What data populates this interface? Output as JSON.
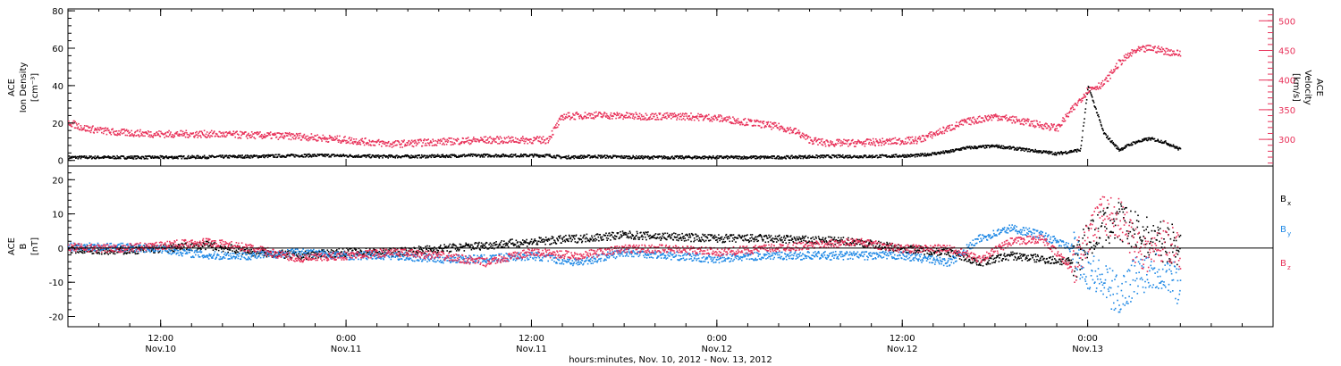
{
  "chart_data": {
    "type": "scatter",
    "x_axis": {
      "title": "hours:minutes, Nov. 10, 2012 - Nov. 13, 2012",
      "range_hours": [
        6,
        84
      ],
      "ticks": [
        {
          "h": 12,
          "time": "12:00",
          "day": "Nov.10"
        },
        {
          "h": 24,
          "time": "0:00",
          "day": "Nov.11"
        },
        {
          "h": 36,
          "time": "12:00",
          "day": "Nov.11"
        },
        {
          "h": 48,
          "time": "0:00",
          "day": "Nov.12"
        },
        {
          "h": 60,
          "time": "12:00",
          "day": "Nov.12"
        },
        {
          "h": 72,
          "time": "0:00",
          "day": "Nov.13"
        }
      ]
    },
    "panels": [
      {
        "id": "plasma",
        "left_axis": {
          "label_lines": [
            "ACE",
            "Ion Density",
            "[cm⁻³]"
          ],
          "ylim": [
            -3,
            81
          ],
          "ticks": [
            0,
            20,
            40,
            60,
            80
          ]
        },
        "right_axis": {
          "label_lines": [
            "ACE",
            "Velocity",
            "[km/s]"
          ],
          "ylim": [
            255,
            520
          ],
          "ticks": [
            300,
            350,
            400,
            450,
            500
          ],
          "color": "#e8325a"
        },
        "series": [
          {
            "axis": "left",
            "color": "#000000",
            "points": [
              [
                6,
                2
              ],
              [
                9,
                2
              ],
              [
                12,
                2
              ],
              [
                15,
                2.2
              ],
              [
                18,
                2.5
              ],
              [
                21,
                3
              ],
              [
                23,
                3
              ],
              [
                26,
                2.5
              ],
              [
                29,
                2.5
              ],
              [
                32,
                3
              ],
              [
                35,
                3
              ],
              [
                37,
                3
              ],
              [
                38,
                2
              ],
              [
                40,
                2.5
              ],
              [
                43,
                2
              ],
              [
                46,
                2
              ],
              [
                49,
                2
              ],
              [
                52,
                2
              ],
              [
                55,
                2.5
              ],
              [
                58,
                2.5
              ],
              [
                61,
                3
              ],
              [
                63,
                5
              ],
              [
                64,
                7
              ],
              [
                66,
                8
              ],
              [
                68,
                6
              ],
              [
                70,
                4
              ],
              [
                71.5,
                6
              ],
              [
                72,
                40
              ],
              [
                73,
                15
              ],
              [
                74,
                6
              ],
              [
                75,
                10
              ],
              [
                76,
                12
              ],
              [
                77,
                10
              ],
              [
                78,
                6
              ]
            ]
          },
          {
            "axis": "right",
            "color": "#e8325a",
            "points": [
              [
                6,
                330
              ],
              [
                7,
                320
              ],
              [
                9,
                313
              ],
              [
                12,
                310
              ],
              [
                15,
                310
              ],
              [
                18,
                308
              ],
              [
                21,
                306
              ],
              [
                24,
                300
              ],
              [
                27,
                293
              ],
              [
                30,
                297
              ],
              [
                33,
                300
              ],
              [
                35,
                300
              ],
              [
                37,
                300
              ],
              [
                38,
                340
              ],
              [
                40,
                342
              ],
              [
                43,
                340
              ],
              [
                46,
                340
              ],
              [
                48,
                337
              ],
              [
                50,
                330
              ],
              [
                52,
                322
              ],
              [
                53,
                315
              ],
              [
                54,
                300
              ],
              [
                55,
                295
              ],
              [
                57,
                295
              ],
              [
                59,
                297
              ],
              [
                61,
                300
              ],
              [
                63,
                320
              ],
              [
                64,
                330
              ],
              [
                66,
                340
              ],
              [
                68,
                330
              ],
              [
                70,
                320
              ],
              [
                72,
                385
              ],
              [
                73,
                395
              ],
              [
                74,
                430
              ],
              [
                75,
                450
              ],
              [
                76,
                455
              ],
              [
                77,
                450
              ],
              [
                78,
                445
              ]
            ]
          }
        ]
      },
      {
        "id": "magnetic",
        "left_axis": {
          "label_lines": [
            "ACE",
            "B",
            "[nT]"
          ],
          "ylim": [
            -23,
            24
          ],
          "ticks": [
            -20,
            -10,
            0,
            10,
            20
          ]
        },
        "legend": [
          {
            "label": "B",
            "sub": "x",
            "color": "#000000"
          },
          {
            "label": "B",
            "sub": "y",
            "color": "#1e88e5"
          },
          {
            "label": "B",
            "sub": "z",
            "color": "#e8325a"
          }
        ],
        "series": [
          {
            "name": "Bx",
            "color": "#000000",
            "points": [
              [
                6,
                0
              ],
              [
                9,
                -0.5
              ],
              [
                12,
                0
              ],
              [
                15,
                1
              ],
              [
                18,
                -1
              ],
              [
                21,
                -2
              ],
              [
                24,
                -1
              ],
              [
                27,
                -1
              ],
              [
                30,
                0
              ],
              [
                33,
                1
              ],
              [
                36,
                2
              ],
              [
                39,
                3
              ],
              [
                42,
                4
              ],
              [
                45,
                3.5
              ],
              [
                48,
                3
              ],
              [
                51,
                3
              ],
              [
                54,
                2.5
              ],
              [
                57,
                2
              ],
              [
                60,
                0
              ],
              [
                63,
                -1
              ],
              [
                65,
                -4
              ],
              [
                67,
                -2
              ],
              [
                69,
                -3
              ],
              [
                71,
                -4
              ],
              [
                72,
                3
              ],
              [
                73,
                6
              ],
              [
                74,
                8
              ],
              [
                75,
                5
              ],
              [
                76,
                3
              ],
              [
                77,
                2
              ],
              [
                78,
                1
              ]
            ]
          },
          {
            "name": "By",
            "color": "#1e88e5",
            "points": [
              [
                6,
                0.5
              ],
              [
                9,
                0.5
              ],
              [
                12,
                0
              ],
              [
                15,
                -2
              ],
              [
                18,
                -2
              ],
              [
                21,
                -1
              ],
              [
                24,
                -2
              ],
              [
                27,
                -2
              ],
              [
                30,
                -3
              ],
              [
                33,
                -3
              ],
              [
                36,
                -2
              ],
              [
                39,
                -4
              ],
              [
                42,
                -1
              ],
              [
                45,
                -2
              ],
              [
                48,
                -3
              ],
              [
                51,
                -2
              ],
              [
                54,
                -2
              ],
              [
                57,
                -2
              ],
              [
                60,
                -2
              ],
              [
                63,
                -4
              ],
              [
                65,
                3
              ],
              [
                67,
                6
              ],
              [
                69,
                4
              ],
              [
                71,
                0
              ],
              [
                72,
                -6
              ],
              [
                73,
                -10
              ],
              [
                74,
                -14
              ],
              [
                75,
                -8
              ],
              [
                76,
                -6
              ],
              [
                77,
                -7
              ],
              [
                78,
                -11
              ]
            ]
          },
          {
            "name": "Bz",
            "color": "#e8325a",
            "points": [
              [
                6,
                0.5
              ],
              [
                9,
                0
              ],
              [
                12,
                1
              ],
              [
                15,
                2
              ],
              [
                18,
                0
              ],
              [
                21,
                -3
              ],
              [
                24,
                -2
              ],
              [
                27,
                -1
              ],
              [
                30,
                -2
              ],
              [
                33,
                -4
              ],
              [
                36,
                -1
              ],
              [
                39,
                -2
              ],
              [
                42,
                0
              ],
              [
                45,
                0
              ],
              [
                48,
                -1
              ],
              [
                51,
                0
              ],
              [
                54,
                1
              ],
              [
                57,
                2
              ],
              [
                60,
                0
              ],
              [
                63,
                0
              ],
              [
                65,
                -3
              ],
              [
                67,
                2
              ],
              [
                69,
                3
              ],
              [
                71,
                -6
              ],
              [
                72,
                5
              ],
              [
                73,
                10
              ],
              [
                74,
                9
              ],
              [
                75,
                2
              ],
              [
                76,
                -2
              ],
              [
                77,
                3
              ],
              [
                78,
                -2
              ]
            ]
          }
        ]
      }
    ]
  }
}
